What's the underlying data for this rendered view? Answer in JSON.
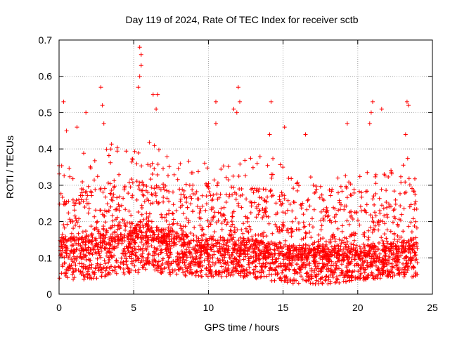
{
  "chart_data": {
    "type": "scatter",
    "title": "Day 119 of 2024, Rate Of TEC Index for receiver sctb",
    "xlabel": "GPS time / hours",
    "ylabel": "ROTI / TECUs",
    "xlim": [
      0,
      25
    ],
    "ylim": [
      0,
      0.7
    ],
    "xticks": [
      "0",
      "5",
      "10",
      "15",
      "20",
      "25"
    ],
    "yticks": [
      "0",
      "0.1",
      "0.2",
      "0.3",
      "0.4",
      "0.5",
      "0.6",
      "0.7"
    ],
    "grid": true,
    "marker": "+",
    "series_color": "#ff0000",
    "series": [
      {
        "name": "ROTI",
        "note": "dense cloud of ROTI samples spanning 0-24 h; sampled bulk envelope plus notable outliers",
        "envelope": [
          {
            "t": 0.0,
            "low": 0.02,
            "typical": 0.12,
            "high": 0.3
          },
          {
            "t": 2.0,
            "low": 0.02,
            "typical": 0.12,
            "high": 0.33
          },
          {
            "t": 4.0,
            "low": 0.03,
            "typical": 0.15,
            "high": 0.35
          },
          {
            "t": 6.0,
            "low": 0.04,
            "typical": 0.15,
            "high": 0.35
          },
          {
            "t": 8.0,
            "low": 0.03,
            "typical": 0.13,
            "high": 0.31
          },
          {
            "t": 10.0,
            "low": 0.03,
            "typical": 0.12,
            "high": 0.3
          },
          {
            "t": 12.0,
            "low": 0.03,
            "typical": 0.12,
            "high": 0.33
          },
          {
            "t": 14.0,
            "low": 0.02,
            "typical": 0.11,
            "high": 0.32
          },
          {
            "t": 16.0,
            "low": 0.01,
            "typical": 0.1,
            "high": 0.28
          },
          {
            "t": 18.0,
            "low": 0.01,
            "typical": 0.1,
            "high": 0.26
          },
          {
            "t": 20.0,
            "low": 0.02,
            "typical": 0.1,
            "high": 0.28
          },
          {
            "t": 22.0,
            "low": 0.03,
            "typical": 0.11,
            "high": 0.3
          },
          {
            "t": 24.0,
            "low": 0.03,
            "typical": 0.12,
            "high": 0.32
          }
        ],
        "outliers": [
          {
            "x": 0.3,
            "y": 0.53
          },
          {
            "x": 0.5,
            "y": 0.45
          },
          {
            "x": 1.2,
            "y": 0.46
          },
          {
            "x": 1.8,
            "y": 0.5
          },
          {
            "x": 2.8,
            "y": 0.57
          },
          {
            "x": 2.9,
            "y": 0.52
          },
          {
            "x": 3.0,
            "y": 0.47
          },
          {
            "x": 5.4,
            "y": 0.68
          },
          {
            "x": 5.5,
            "y": 0.66
          },
          {
            "x": 5.5,
            "y": 0.63
          },
          {
            "x": 5.4,
            "y": 0.6
          },
          {
            "x": 5.3,
            "y": 0.57
          },
          {
            "x": 6.3,
            "y": 0.55
          },
          {
            "x": 6.6,
            "y": 0.55
          },
          {
            "x": 6.5,
            "y": 0.51
          },
          {
            "x": 10.5,
            "y": 0.53
          },
          {
            "x": 10.5,
            "y": 0.47
          },
          {
            "x": 11.7,
            "y": 0.51
          },
          {
            "x": 11.9,
            "y": 0.5
          },
          {
            "x": 12.0,
            "y": 0.57
          },
          {
            "x": 12.1,
            "y": 0.53
          },
          {
            "x": 14.2,
            "y": 0.53
          },
          {
            "x": 14.1,
            "y": 0.44
          },
          {
            "x": 15.1,
            "y": 0.46
          },
          {
            "x": 16.5,
            "y": 0.44
          },
          {
            "x": 19.3,
            "y": 0.47
          },
          {
            "x": 21.0,
            "y": 0.53
          },
          {
            "x": 20.9,
            "y": 0.5
          },
          {
            "x": 20.8,
            "y": 0.47
          },
          {
            "x": 21.6,
            "y": 0.51
          },
          {
            "x": 23.3,
            "y": 0.53
          },
          {
            "x": 23.4,
            "y": 0.52
          },
          {
            "x": 23.2,
            "y": 0.44
          }
        ]
      }
    ]
  }
}
